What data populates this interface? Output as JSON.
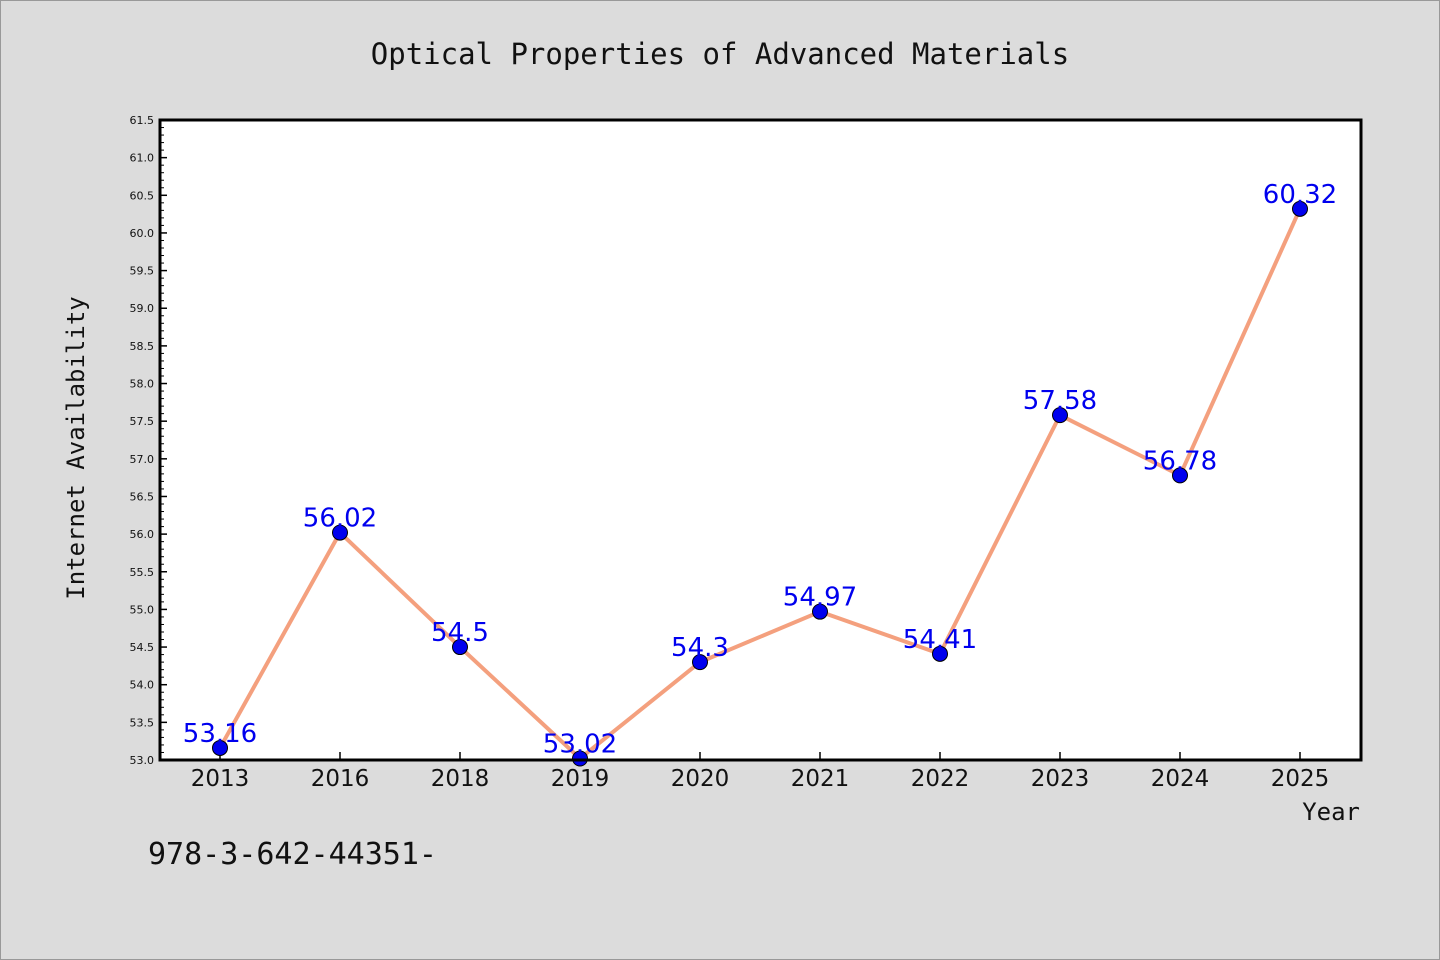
{
  "chart_data": {
    "type": "line",
    "title": "Optical Properties of Advanced Materials",
    "xlabel": "Year",
    "ylabel": "Internet Availability",
    "categories": [
      "2013",
      "2016",
      "2018",
      "2019",
      "2020",
      "2021",
      "2022",
      "2023",
      "2024",
      "2025"
    ],
    "series": [
      {
        "values": [
          53.16,
          56.02,
          54.5,
          53.02,
          54.3,
          54.97,
          54.41,
          57.58,
          56.78,
          60.32
        ],
        "data_labels": [
          "53.16",
          "56.02",
          "54.5",
          "53.02",
          "54.3",
          "54.97",
          "54.41",
          "57.58",
          "56.78",
          "60.32"
        ],
        "line_color": "#f4a07e",
        "marker_color": "#0000ee"
      }
    ],
    "ylim": [
      53.0,
      61.5
    ],
    "yticks": [
      "53.0",
      "53.5",
      "54.0",
      "54.5",
      "55.0",
      "55.5",
      "56.0",
      "56.5",
      "57.0",
      "57.5",
      "58.0",
      "58.5",
      "59.0",
      "59.5",
      "60.0",
      "60.5",
      "61.0",
      "61.5"
    ],
    "grid": false,
    "legend": false,
    "label_color": "#0000ee",
    "background": "#dcdcdc",
    "plot_background": "#ffffff"
  },
  "footer_text": "978-3-642-44351-"
}
